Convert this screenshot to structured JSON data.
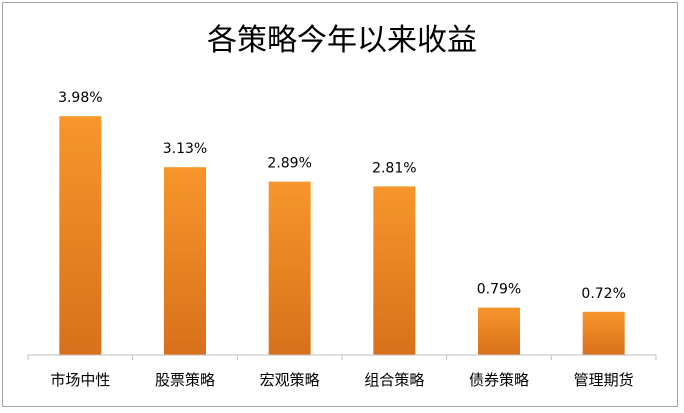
{
  "chart_data": {
    "type": "bar",
    "title": "各策略今年以来收益",
    "categories": [
      "市场中性",
      "股票策略",
      "宏观策略",
      "组合策略",
      "债券策略",
      "管理期货"
    ],
    "values": [
      3.98,
      3.13,
      2.89,
      2.81,
      0.79,
      0.72
    ],
    "data_labels": [
      "3.98%",
      "3.13%",
      "2.89%",
      "2.81%",
      "0.79%",
      "0.72%"
    ],
    "value_unit": "%",
    "xlabel": "",
    "ylabel": "",
    "ylim": [
      0,
      4.5
    ],
    "grid": false,
    "legend": "none",
    "bar_color_top": "#F7962B",
    "bar_color_bottom": "#D8701B",
    "axis_color": "#BFBFBF"
  }
}
